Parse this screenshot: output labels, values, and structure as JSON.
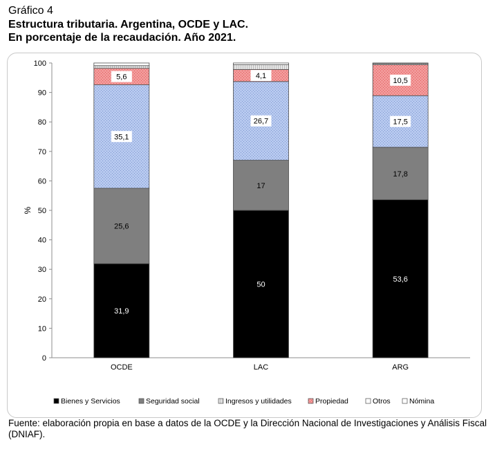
{
  "header": {
    "caption": "Gráfico 4",
    "title_line1": "Estructura tributaria. Argentina, OCDE y LAC.",
    "title_line2": "En porcentaje de la recaudación. Año 2021."
  },
  "footer": {
    "source": "Fuente: elaboración propia en base a datos de la OCDE y la Dirección Nacional de Investigaciones y Análisis Fiscal (DNIAF)."
  },
  "chart_data": {
    "type": "bar",
    "stacked": true,
    "categories": [
      "OCDE",
      "LAC",
      "ARG"
    ],
    "ylabel": "%",
    "ylim": [
      0,
      100
    ],
    "yticks": [
      0,
      10,
      20,
      30,
      40,
      50,
      60,
      70,
      80,
      90,
      100
    ],
    "legend_position": "bottom",
    "grid": false,
    "series": [
      {
        "name": "Bienes y Servicios",
        "values": [
          31.9,
          50,
          53.6
        ],
        "labels": [
          "31,9",
          "50",
          "53,6"
        ],
        "color": "#000000",
        "label_color": "#ffffff"
      },
      {
        "name": "Seguridad social",
        "values": [
          25.6,
          17,
          17.8
        ],
        "labels": [
          "25,6",
          "17",
          "17,8"
        ],
        "color": "#7f7f7f",
        "label_color": "#000000"
      },
      {
        "name": "Ingresos y utilidades",
        "values": [
          35.1,
          26.7,
          17.5
        ],
        "labels": [
          "35,1",
          "26,7",
          "17,5"
        ],
        "color": "#a9bde6",
        "label_color": "#000000"
      },
      {
        "name": "Propiedad",
        "values": [
          5.6,
          4.1,
          10.5
        ],
        "labels": [
          "5,6",
          "4,1",
          "10,5"
        ],
        "color": "#ee8585",
        "label_color": "#000000"
      },
      {
        "name": "Otros",
        "values": [
          0.9,
          1.6,
          0.4
        ],
        "labels": [
          "",
          "",
          ""
        ],
        "color": "#d9d9d9",
        "label_color": "#000000"
      },
      {
        "name": "Nómina",
        "values": [
          0.9,
          0.6,
          0.2
        ],
        "labels": [
          "",
          "",
          ""
        ],
        "color": "#ffffff",
        "label_color": "#000000"
      }
    ]
  }
}
